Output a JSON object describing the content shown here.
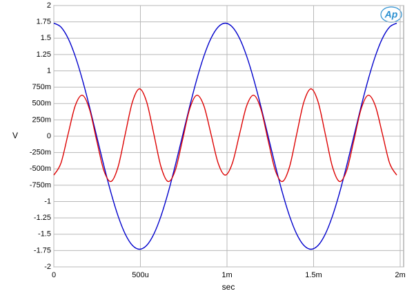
{
  "chart_data": {
    "type": "line",
    "xlabel": "sec",
    "ylabel": "V",
    "logo": "Ap",
    "x": [
      0,
      4.125e-05,
      8.25e-05,
      0.00012375,
      0.000165,
      0.00020625,
      0.0002475,
      0.00028875,
      0.00033,
      0.00037125,
      0.0004125,
      0.00045375,
      0.000495,
      0.00053625,
      0.0005775,
      0.00061875,
      0.00066,
      0.00070125,
      0.0007425,
      0.00078375,
      0.000825,
      0.00086625,
      0.0009075,
      0.00094875,
      0.00099,
      0.00103125,
      0.0010725,
      0.00111375,
      0.001155,
      0.00119625,
      0.0012375,
      0.00127875,
      0.00132,
      0.00136125,
      0.0014025,
      0.00144375,
      0.001485,
      0.00152625,
      0.0015675,
      0.00160875,
      0.00165,
      0.00169125,
      0.0017325,
      0.00177375,
      0.001815,
      0.00185625,
      0.0018975,
      0.00193875,
      0.00198
    ],
    "series": [
      {
        "color": "#0000cc",
        "values": [
          1.73,
          1.671,
          1.498,
          1.223,
          0.865,
          0.448,
          0,
          -0.448,
          -0.865,
          -1.223,
          -1.498,
          -1.671,
          -1.73,
          -1.671,
          -1.498,
          -1.223,
          -0.865,
          -0.448,
          0,
          0.448,
          0.865,
          1.223,
          1.498,
          1.671,
          1.73,
          1.671,
          1.498,
          1.223,
          0.865,
          0.448,
          0,
          -0.448,
          -0.865,
          -1.223,
          -1.498,
          -1.671,
          -1.73,
          -1.671,
          -1.498,
          -1.223,
          -0.865,
          -0.448,
          0,
          0.448,
          0.865,
          1.223,
          1.498,
          1.671,
          1.73
        ]
      },
      {
        "color": "#dd0000",
        "values": [
          -0.595,
          -0.411,
          0.033,
          0.467,
          0.627,
          0.411,
          -0.065,
          -0.523,
          -0.693,
          -0.467,
          0.033,
          0.523,
          0.725,
          0.523,
          0.033,
          -0.467,
          -0.693,
          -0.523,
          -0.065,
          0.411,
          0.627,
          0.467,
          0.033,
          -0.411,
          -0.595,
          -0.411,
          0.033,
          0.467,
          0.627,
          0.411,
          -0.065,
          -0.523,
          -0.693,
          -0.467,
          0.033,
          0.523,
          0.725,
          0.523,
          0.033,
          -0.467,
          -0.693,
          -0.523,
          -0.065,
          0.411,
          0.627,
          0.467,
          0.033,
          -0.411,
          -0.595
        ]
      }
    ],
    "xlim": [
      0,
      0.00202
    ],
    "xticks": [
      0,
      {
        "value": 0.0005,
        "label": "500u"
      },
      {
        "value": 0.001,
        "label": "1m"
      },
      {
        "value": 0.0015,
        "label": "1.5m"
      },
      {
        "value": 0.002,
        "label": "2m"
      }
    ],
    "ylim": [
      -2,
      2
    ],
    "yticks": [
      2,
      1.75,
      1.5,
      1.25,
      1,
      {
        "value": 0.75,
        "label": "750m"
      },
      {
        "value": 0.5,
        "label": "500m"
      },
      {
        "value": 0.25,
        "label": "250m"
      },
      0,
      {
        "value": -0.25,
        "label": "-250m"
      },
      {
        "value": -0.5,
        "label": "-500m"
      },
      {
        "value": -0.75,
        "label": "-750m"
      },
      -1,
      -1.25,
      -1.5,
      -1.75,
      -2
    ],
    "grid": true
  }
}
